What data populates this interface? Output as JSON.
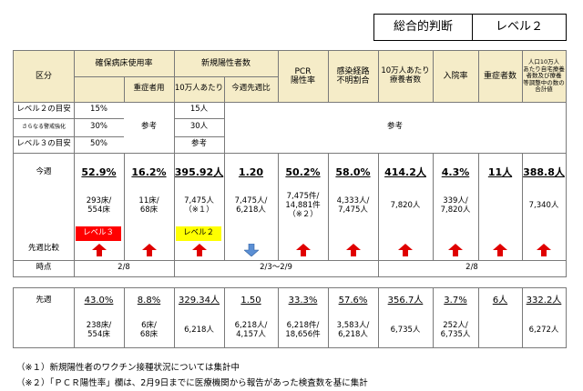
{
  "header": {
    "title": "総合的判断",
    "level": "レベル２"
  },
  "columns": {
    "kubun": "区分",
    "bed": "確保病床使用率",
    "severe_bed": "重症者用",
    "new_pos": "新規陽性者数",
    "per100k": "10万人あたり",
    "wow": "今週先週比",
    "pcr": "PCR\n陽性率",
    "unknown": "感染経路\n不明割合",
    "recuperating": "10万人あたり\n療養者数",
    "admission": "入院率",
    "severe": "重症者数",
    "home": "人口10万人\nあたり自宅療養\n者数及び療養\n等調整中の数の\n合計値"
  },
  "guide": {
    "level2": "レベル２の目安",
    "strengthen": "さらなる警戒強化",
    "level3": "レベル３の目安",
    "bed_l2": "15%",
    "bed_strengthen": "30%",
    "bed_l3": "50%",
    "severe_ref": "参考",
    "pos_l2": "15人",
    "pos_strengthen": "30人",
    "pos_l3": "参考",
    "rest_ref": "参考"
  },
  "this_week": {
    "label": "今週",
    "bed": "52.9%",
    "bed_detail": "293床/\n554床",
    "severe_bed": "16.2%",
    "severe_bed_detail": "11床/\n68床",
    "per100k": "395.92人",
    "per100k_detail": "7,475人\n（※１）",
    "wow": "1.20",
    "wow_detail": "7,475人/\n6,218人",
    "pcr": "50.2%",
    "pcr_detail": "7,475件/\n14,881件\n（※２）",
    "unknown": "58.0%",
    "unknown_detail": "4,333人/\n7,475人",
    "recuperating": "414.2人",
    "recuperating_detail": "7,820人",
    "admission": "4.3%",
    "admission_detail": "339人/\n7,820人",
    "severe": "11人",
    "home": "388.8人",
    "home_detail": "7,340人",
    "badge_l3": "レベル３",
    "badge_l2": "レベル２"
  },
  "compare_label": "先週比較",
  "timepoint": {
    "label": "時点",
    "a": "2/8",
    "b": "2/3～2/9",
    "c": "2/8"
  },
  "last_week": {
    "label": "先週",
    "bed": "43.0%",
    "bed_detail": "238床/\n554床",
    "severe_bed": "8.8%",
    "severe_bed_detail": "6床/\n68床",
    "per100k": "329.34人",
    "per100k_detail": "6,218人",
    "wow": "1.50",
    "wow_detail": "6,218人/\n4,157人",
    "pcr": "33.3%",
    "pcr_detail": "6,218件/\n18,656件",
    "unknown": "57.6%",
    "unknown_detail": "3,583人/\n6,218人",
    "recuperating": "356.7人",
    "recuperating_detail": "6,735人",
    "admission": "3.7%",
    "admission_detail": "252人/\n6,735人",
    "severe": "6人",
    "home": "332.2人",
    "home_detail": "6,272人"
  },
  "notes": {
    "n1": "（※１）新規陽性者のワクチン接種状況については集計中",
    "n2": "（※２）「ＰＣＲ陽性率」欄は、2月9日までに医療機関から報告があった検査数を基に集計"
  },
  "colors": {
    "header_bg": "#f5ecc8",
    "red_badge": "#ff0000",
    "yellow_badge": "#ffff00",
    "arrow_red": "#e00000",
    "arrow_blue": "#5b8fd4"
  }
}
